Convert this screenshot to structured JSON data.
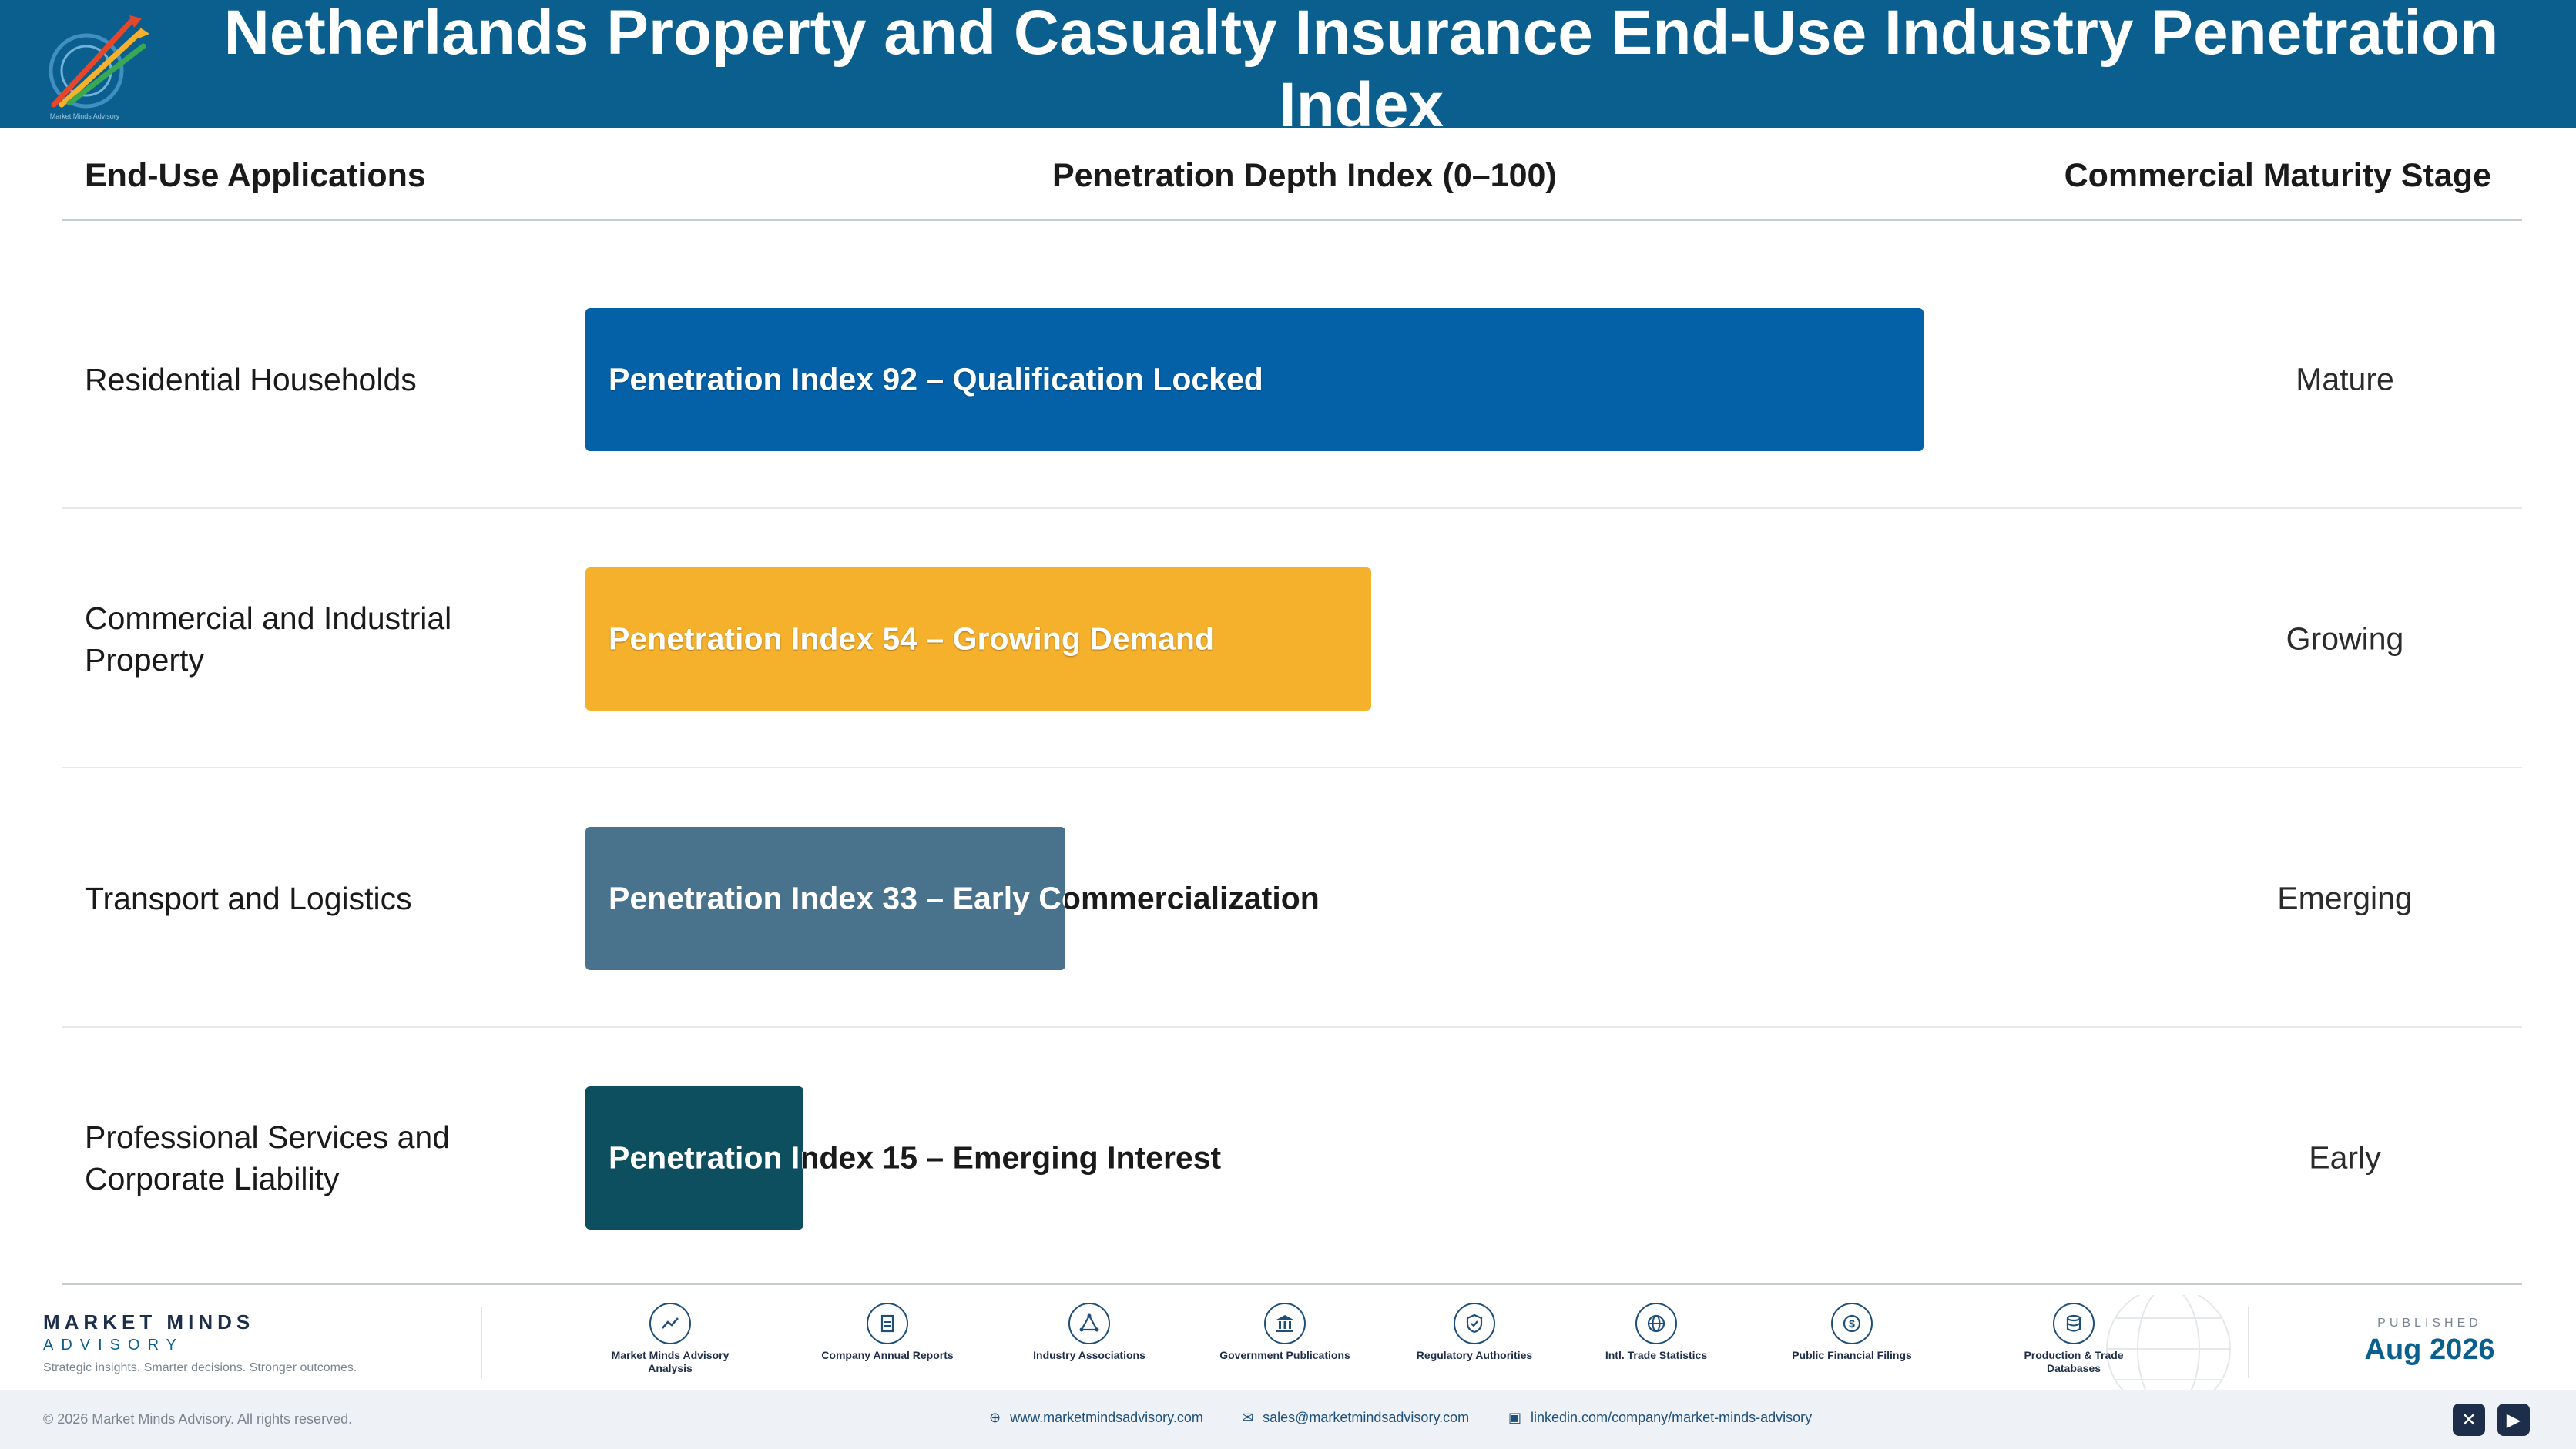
{
  "header": {
    "title": "Netherlands Property and Casualty Insurance End-Use Industry Penetration Index"
  },
  "columns": {
    "application": "End-Use Applications",
    "depth": "Penetration Depth Index (0–100)",
    "stage": "Commercial Maturity Stage"
  },
  "rows": [
    {
      "application": "Residential Households",
      "index": 92,
      "bar_label": "Penetration Index 92 – Qualification Locked",
      "stage": "Mature",
      "color": "#0461a8"
    },
    {
      "application": "Commercial and Industrial Property",
      "index": 54,
      "bar_label": "Penetration Index 54 – Growing Demand",
      "stage": "Growing",
      "color": "#f6b12c"
    },
    {
      "application": "Transport and Logistics",
      "index": 33,
      "bar_label": "Penetration Index 33 – Early Commercialization",
      "stage": "Emerging",
      "color": "#49728c"
    },
    {
      "application": "Professional Services and Corporate Liability",
      "index": 15,
      "bar_label": "Penetration Index 15 – Emerging Interest",
      "stage": "Early",
      "color": "#0e4f5f"
    }
  ],
  "footer": {
    "brand_name": "MARKET MINDS",
    "brand_sub": "ADVISORY",
    "tagline": "Strategic insights. Smarter decisions. Stronger outcomes.",
    "sources": [
      {
        "icon": "chart-line-icon",
        "label": "Market Minds Advisory Analysis"
      },
      {
        "icon": "document-icon",
        "label": "Company Annual Reports"
      },
      {
        "icon": "network-icon",
        "label": "Industry Associations"
      },
      {
        "icon": "government-building-icon",
        "label": "Government Publications"
      },
      {
        "icon": "shield-check-icon",
        "label": "Regulatory Authorities"
      },
      {
        "icon": "globe-icon",
        "label": "Intl. Trade Statistics"
      },
      {
        "icon": "dollar-coin-icon",
        "label": "Public Financial Filings"
      },
      {
        "icon": "database-icon",
        "label": "Production & Trade Databases"
      }
    ],
    "published_label": "PUBLISHED",
    "published_date": "Aug 2026"
  },
  "bottom_bar": {
    "copyright": "© 2026 Market Minds Advisory. All rights reserved.",
    "website": "www.marketmindsadvisory.com",
    "email": "sales@marketmindsadvisory.com",
    "linkedin": "linkedin.com/company/market-minds-advisory"
  }
}
